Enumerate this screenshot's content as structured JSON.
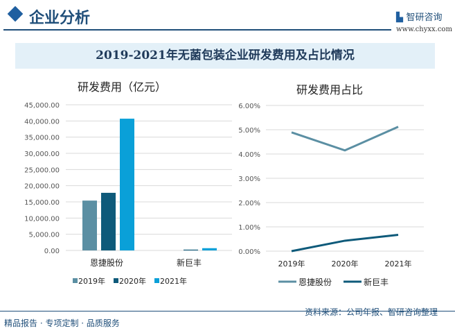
{
  "header": {
    "title": "企业分析",
    "brand": "智研咨询",
    "url": "www.chyxx.com"
  },
  "banner": "2019-2021年无菌包装企业研发费用及占比情况",
  "footer": {
    "left": "精品报告 · 专项定制 · 品质服务",
    "source": "资料来源：公司年报、智研咨询整理"
  },
  "colors": {
    "s2019": "#5b8fa3",
    "s2020": "#0e5a7a",
    "s2021": "#0aa0d8",
    "line1": "#5b8fa3",
    "line2": "#0e5a7a"
  },
  "chart_data": [
    {
      "type": "bar",
      "title": "研发费用（亿元）",
      "categories": [
        "恩捷股份",
        "新巨丰"
      ],
      "ylim": [
        0,
        45000
      ],
      "yticks": [
        "0.00",
        "5,000.00",
        "10,000.00",
        "15,000.00",
        "20,000.00",
        "25,000.00",
        "30,000.00",
        "35,000.00",
        "40,000.00",
        "45,000.00"
      ],
      "series": [
        {
          "name": "2019年",
          "values": [
            15400,
            0
          ]
        },
        {
          "name": "2020年",
          "values": [
            17800,
            250
          ]
        },
        {
          "name": "2021年",
          "values": [
            40700,
            700
          ]
        }
      ],
      "grid": true,
      "legend": "bottom"
    },
    {
      "type": "line",
      "title": "研发费用占比",
      "categories": [
        "2019年",
        "2020年",
        "2021年"
      ],
      "ylim": [
        0,
        6
      ],
      "yticks": [
        "0.00%",
        "1.00%",
        "2.00%",
        "3.00%",
        "4.00%",
        "5.00%",
        "6.00%"
      ],
      "series": [
        {
          "name": "恩捷股份",
          "values": [
            4.89,
            4.15,
            5.12
          ]
        },
        {
          "name": "新巨丰",
          "values": [
            0.0,
            0.43,
            0.67
          ]
        }
      ],
      "grid": true,
      "legend": "bottom"
    }
  ]
}
